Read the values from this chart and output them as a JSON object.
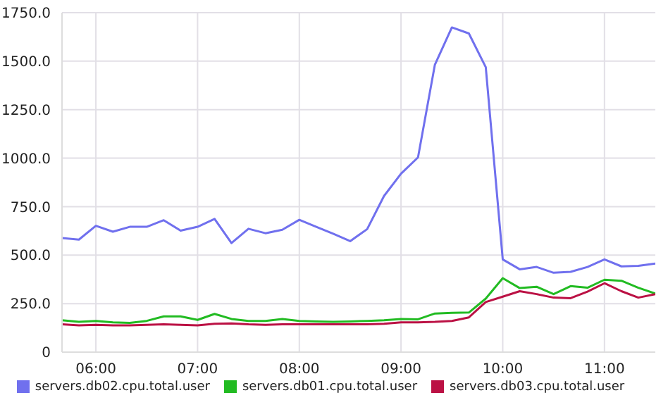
{
  "chart_data": {
    "type": "line",
    "x": [
      5.667,
      5.833,
      6,
      6.167,
      6.333,
      6.5,
      6.667,
      6.833,
      7,
      7.167,
      7.333,
      7.5,
      7.667,
      7.833,
      8,
      8.167,
      8.333,
      8.5,
      8.667,
      8.833,
      9,
      9.167,
      9.333,
      9.5,
      9.667,
      9.833,
      10,
      10.167,
      10.333,
      10.5,
      10.667,
      10.833,
      11,
      11.167,
      11.333,
      11.5
    ],
    "series": [
      {
        "name": "servers.db02.cpu.total.user",
        "color": "#7070ee",
        "values": [
          588,
          580,
          651,
          621,
          646,
          646,
          680,
          626,
          646,
          687,
          562,
          636,
          613,
          631,
          682,
          646,
          610,
          572,
          634,
          805,
          920,
          1004,
          1482,
          1674,
          1643,
          1469,
          478,
          427,
          439,
          409,
          414,
          439,
          478,
          442,
          445,
          457
        ]
      },
      {
        "name": "servers.db01.cpu.total.user",
        "color": "#22bb22",
        "values": [
          164,
          156,
          161,
          153,
          151,
          161,
          184,
          184,
          166,
          197,
          171,
          161,
          161,
          171,
          161,
          158,
          156,
          158,
          161,
          164,
          171,
          169,
          199,
          202,
          204,
          276,
          381,
          330,
          337,
          299,
          340,
          332,
          373,
          368,
          332,
          302
        ]
      },
      {
        "name": "servers.db03.cpu.total.user",
        "color": "#bb1144",
        "values": [
          143,
          138,
          141,
          138,
          138,
          141,
          143,
          141,
          138,
          146,
          148,
          143,
          141,
          143,
          143,
          143,
          143,
          143,
          143,
          146,
          153,
          153,
          156,
          161,
          179,
          258,
          286,
          314,
          299,
          281,
          278,
          312,
          355,
          314,
          281,
          299
        ]
      }
    ],
    "xlim": [
      5.667,
      11.5
    ],
    "xticks": [
      {
        "value": 6,
        "label": "06:00"
      },
      {
        "value": 7,
        "label": "07:00"
      },
      {
        "value": 8,
        "label": "08:00"
      },
      {
        "value": 9,
        "label": "09:00"
      },
      {
        "value": 10,
        "label": "10:00"
      },
      {
        "value": 11,
        "label": "11:00"
      }
    ],
    "ylim": [
      0,
      1750
    ],
    "yticks": [
      0,
      {
        "value": 250,
        "label": "250.0"
      },
      {
        "value": 500,
        "label": "500.0"
      },
      {
        "value": 750,
        "label": "750.0"
      },
      {
        "value": 1000,
        "label": "1000.0"
      },
      {
        "value": 1250,
        "label": "1250.0"
      },
      {
        "value": 1500,
        "label": "1500.0"
      },
      {
        "value": 1750,
        "label": "1750.0"
      }
    ],
    "grid": true,
    "legend": "bottom",
    "marker": "none",
    "line_style": "solid"
  }
}
